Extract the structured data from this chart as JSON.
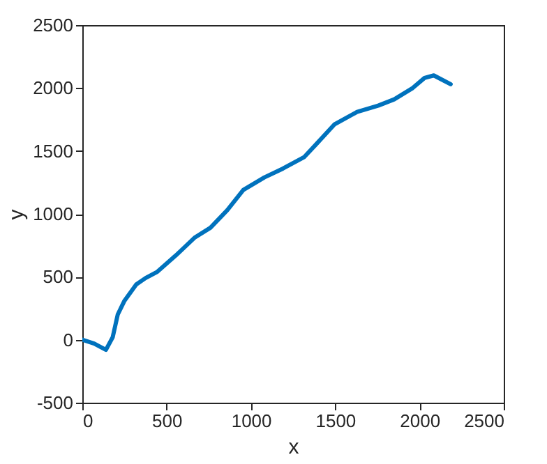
{
  "chart_data": {
    "type": "line",
    "xlabel": "x",
    "ylabel": "y",
    "xlim": [
      0,
      2500
    ],
    "ylim": [
      -500,
      2500
    ],
    "xticks": [
      0,
      500,
      1000,
      1500,
      2000,
      2500
    ],
    "yticks": [
      -500,
      0,
      500,
      1000,
      1500,
      2000,
      2500
    ],
    "grid": false,
    "series": [
      {
        "color": "#0072bd",
        "x": [
          0,
          70,
          140,
          180,
          210,
          250,
          320,
          375,
          445,
          555,
          665,
          760,
          860,
          955,
          1080,
          1190,
          1315,
          1385,
          1495,
          1630,
          1755,
          1850,
          1960,
          2030,
          2085,
          2185
        ],
        "values": [
          0,
          -30,
          -80,
          20,
          200,
          310,
          440,
          490,
          540,
          670,
          810,
          890,
          1030,
          1190,
          1290,
          1360,
          1450,
          1550,
          1710,
          1810,
          1860,
          1910,
          2000,
          2080,
          2100,
          2030
        ]
      }
    ]
  }
}
